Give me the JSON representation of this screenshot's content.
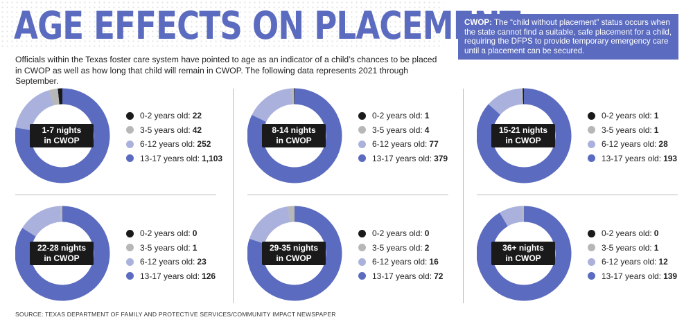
{
  "header": {
    "title": "AGE EFFECTS ON PLACEMENT",
    "intro": "Officials within the Texas foster care system have pointed to age as an indicator of a child’s chances to be placed in CWOP as well as how long that child will remain in CWOP. The following data represents 2021 through September."
  },
  "note": {
    "term": "CWOP:",
    "text": "The “child without placement” status occurs when the state cannot find a suitable, safe placement for a child, requiring the DFPS to provide temporary emergency care until a placement can be secured."
  },
  "colors": {
    "0-2": "#1a1a1a",
    "3-5": "#b7b7b7",
    "6-12": "#a9b1dc",
    "13-17": "#5b6bbf",
    "accent": "#5b6bbf"
  },
  "chart_data": [
    {
      "type": "pie",
      "title": "1-7 nights in CWOP",
      "title_lines": [
        "1-7 nights",
        "in CWOP"
      ],
      "categories": [
        "0-2 years old:",
        "3-5 years old:",
        "6-12 years old:",
        "13-17 years old:"
      ],
      "values": [
        22,
        42,
        252,
        1103
      ],
      "value_labels": [
        "22",
        "42",
        "252",
        "1,103"
      ]
    },
    {
      "type": "pie",
      "title": "8-14 nights in CWOP",
      "title_lines": [
        "8-14 nights",
        "in CWOP"
      ],
      "categories": [
        "0-2 years old:",
        "3-5 years old:",
        "6-12 years old:",
        "13-17 years old:"
      ],
      "values": [
        1,
        4,
        77,
        379
      ],
      "value_labels": [
        "1",
        "4",
        "77",
        "379"
      ]
    },
    {
      "type": "pie",
      "title": "15-21 nights in CWOP",
      "title_lines": [
        "15-21 nights",
        "in CWOP"
      ],
      "categories": [
        "0-2 years old:",
        "3-5 years old:",
        "6-12 years old:",
        "13-17 years old:"
      ],
      "values": [
        1,
        1,
        28,
        193
      ],
      "value_labels": [
        "1",
        "1",
        "28",
        "193"
      ]
    },
    {
      "type": "pie",
      "title": "22-28 nights in CWOP",
      "title_lines": [
        "22-28 nights",
        "in CWOP"
      ],
      "categories": [
        "0-2 years old:",
        "3-5 years old:",
        "6-12 years old:",
        "13-17 years old:"
      ],
      "values": [
        0,
        1,
        23,
        126
      ],
      "value_labels": [
        "0",
        "1",
        "23",
        "126"
      ]
    },
    {
      "type": "pie",
      "title": "29-35 nights in CWOP",
      "title_lines": [
        "29-35 nights",
        "in CWOP"
      ],
      "categories": [
        "0-2 years old:",
        "3-5 years old:",
        "6-12 years old:",
        "13-17 years old:"
      ],
      "values": [
        0,
        2,
        16,
        72
      ],
      "value_labels": [
        "0",
        "2",
        "16",
        "72"
      ]
    },
    {
      "type": "pie",
      "title": "36+ nights in CWOP",
      "title_lines": [
        "36+ nights",
        "in CWOP"
      ],
      "categories": [
        "0-2 years old:",
        "3-5 years old:",
        "6-12 years old:",
        "13-17 years old:"
      ],
      "values": [
        0,
        1,
        12,
        139
      ],
      "value_labels": [
        "0",
        "1",
        "12",
        "139"
      ]
    }
  ],
  "footer": {
    "source": "SOURCE: TEXAS DEPARTMENT OF FAMILY AND PROTECTIVE SERVICES/COMMUNITY IMPACT NEWSPAPER"
  }
}
